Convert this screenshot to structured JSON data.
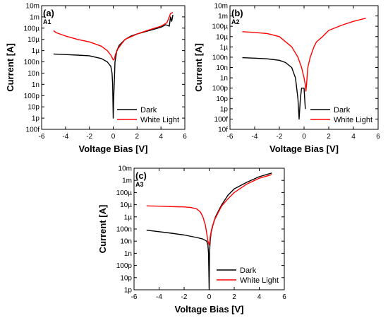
{
  "chart_data": [
    {
      "type": "line",
      "panel_label": "(a)",
      "sample_label": "A1",
      "xlabel": "Voltage Bias [V]",
      "ylabel": "Current [A]",
      "xlim": [
        -6,
        6
      ],
      "ylim": [
        1e-13,
        0.01
      ],
      "y_scale": "log",
      "x_ticks": [
        "-6",
        "-4",
        "-2",
        "0",
        "2",
        "4",
        "6"
      ],
      "y_ticks": [
        "100f",
        "1p",
        "10p",
        "100p",
        "1n",
        "10n",
        "100n",
        "1µ",
        "10µ",
        "100µ",
        "1m",
        "10m"
      ],
      "legend": {
        "placement": "bottom-right",
        "entries": [
          "Dark",
          "White Light"
        ]
      },
      "series": [
        {
          "name": "Dark",
          "color": "#000000",
          "x": [
            -5,
            -4,
            -3,
            -2,
            -1,
            -0.5,
            -0.2,
            -0.1,
            -0.05,
            0.0,
            0.03,
            0.08,
            0.15,
            0.3,
            0.5,
            1,
            1.5,
            2,
            3,
            4,
            4.4,
            4.7,
            4.8,
            4.9,
            5.0
          ],
          "y": [
            5e-07,
            4.5e-07,
            4e-07,
            3.5e-07,
            2e-07,
            1e-07,
            4e-08,
            1e-08,
            1e-09,
            1e-12,
            3e-11,
            1e-09,
            1e-07,
            1e-06,
            3e-06,
            1e-05,
            2e-05,
            3e-05,
            6e-05,
            0.00012,
            0.0002,
            0.00015,
            0.001,
            0.0004,
            0.0015
          ]
        },
        {
          "name": "White Light",
          "color": "#ff0000",
          "x": [
            -5,
            -4.8,
            -4,
            -3,
            -2,
            -1,
            -0.5,
            -0.2,
            0.0,
            0.05,
            0.1,
            0.2,
            0.4,
            0.7,
            1,
            2,
            3,
            4,
            4.5,
            4.7,
            4.8,
            5.0
          ],
          "y": [
            6e-05,
            4e-05,
            2e-05,
            1e-05,
            6e-06,
            2.5e-06,
            1e-06,
            4e-07,
            1.5e-07,
            1.5e-07,
            2e-07,
            5e-07,
            1.5e-06,
            4e-06,
            1e-05,
            3e-05,
            7e-05,
            0.00015,
            0.0003,
            0.001,
            0.002,
            0.0025
          ]
        }
      ]
    },
    {
      "type": "line",
      "panel_label": "(b)",
      "sample_label": "A2",
      "xlabel": "Voltage Bias [V]",
      "ylabel": "Current [A]",
      "xlim": [
        -6,
        6
      ],
      "ylim": [
        1e-14,
        0.01
      ],
      "y_scale": "log",
      "x_ticks": [
        "-6",
        "-4",
        "-2",
        "0",
        "2",
        "4",
        "6"
      ],
      "y_ticks": [
        "10f",
        "100f",
        "1p",
        "10p",
        "100p",
        "1n",
        "10n",
        "100n",
        "1µ",
        "10µ",
        "100µ",
        "1m",
        "10m"
      ],
      "legend": {
        "placement": "bottom-right",
        "entries": [
          "Dark",
          "White Light"
        ]
      },
      "series": [
        {
          "name": "Dark",
          "color": "#000000",
          "x": [
            -5,
            -4,
            -3,
            -2,
            -1.5,
            -1,
            -0.7,
            -0.5,
            -0.4,
            -0.3,
            -0.2,
            -0.1,
            0.0,
            0.05,
            0.1,
            0.12
          ],
          "y": [
            9e-08,
            8e-08,
            7e-08,
            5e-08,
            3e-08,
            1e-08,
            1e-09,
            1e-11,
            1e-13,
            1e-11,
            1e-10,
            1e-10,
            1e-10,
            1e-11,
            1e-12,
            1e-12
          ]
        },
        {
          "name": "White Light",
          "color": "#ff0000",
          "x": [
            -5,
            -4,
            -3,
            -2,
            -1,
            -0.5,
            -0.2,
            0.0,
            0.1,
            0.15,
            0.2,
            0.3,
            0.5,
            0.8,
            1,
            1.5,
            2,
            3,
            4,
            5
          ],
          "y": [
            3e-05,
            2.5e-05,
            2e-05,
            1e-05,
            1e-06,
            1e-07,
            1e-08,
            1e-09,
            2e-10,
            5e-11,
            2e-10,
            1e-08,
            1e-07,
            1e-06,
            3e-06,
            1e-05,
            4e-05,
            0.00012,
            0.0003,
            0.0006
          ]
        }
      ]
    },
    {
      "type": "line",
      "panel_label": "(c)",
      "sample_label": "A3",
      "xlabel": "Voltage Bias [V]",
      "ylabel": "Current [A]",
      "xlim": [
        -6,
        6
      ],
      "ylim": [
        1e-12,
        0.01
      ],
      "y_scale": "log",
      "x_ticks": [
        "-6",
        "-4",
        "-2",
        "0",
        "2",
        "4",
        "6"
      ],
      "y_ticks": [
        "1p",
        "10p",
        "100p",
        "1n",
        "10n",
        "100n",
        "1µ",
        "10µ",
        "100µ",
        "1m",
        "10m"
      ],
      "legend": {
        "placement": "bottom-right",
        "entries": [
          "Dark",
          "White Light"
        ]
      },
      "series": [
        {
          "name": "Dark",
          "color": "#000000",
          "x": [
            -5,
            -4,
            -3,
            -2,
            -1,
            -0.5,
            -0.2,
            -0.1,
            -0.05,
            0.0,
            0.03,
            0.08,
            0.15,
            0.3,
            0.5,
            1,
            1.5,
            2,
            3,
            4,
            5
          ],
          "y": [
            8e-08,
            6e-08,
            4.5e-08,
            3.2e-08,
            2e-08,
            1.5e-08,
            1e-08,
            5e-09,
            1e-09,
            1e-12,
            1e-09,
            1e-08,
            5e-08,
            2e-07,
            1e-06,
            1e-05,
            6e-05,
            0.0002,
            0.0007,
            0.002,
            0.004
          ]
        },
        {
          "name": "White Light",
          "color": "#ff0000",
          "x": [
            -5,
            -4,
            -3,
            -2,
            -1.5,
            -1,
            -0.7,
            -0.5,
            -0.3,
            -0.2,
            -0.1,
            0.0,
            0.05,
            0.1,
            0.2,
            0.4,
            0.7,
            1,
            1.5,
            2,
            3,
            4,
            5
          ],
          "y": [
            8e-06,
            7.5e-06,
            7e-06,
            6.5e-06,
            6e-06,
            4.5e-06,
            2.5e-06,
            1e-06,
            2e-07,
            5e-08,
            1e-08,
            5e-09,
            1e-08,
            3e-08,
            1e-07,
            5e-07,
            2e-06,
            8e-06,
            3e-05,
            0.0001,
            0.0005,
            0.0015,
            0.003
          ]
        }
      ]
    }
  ]
}
